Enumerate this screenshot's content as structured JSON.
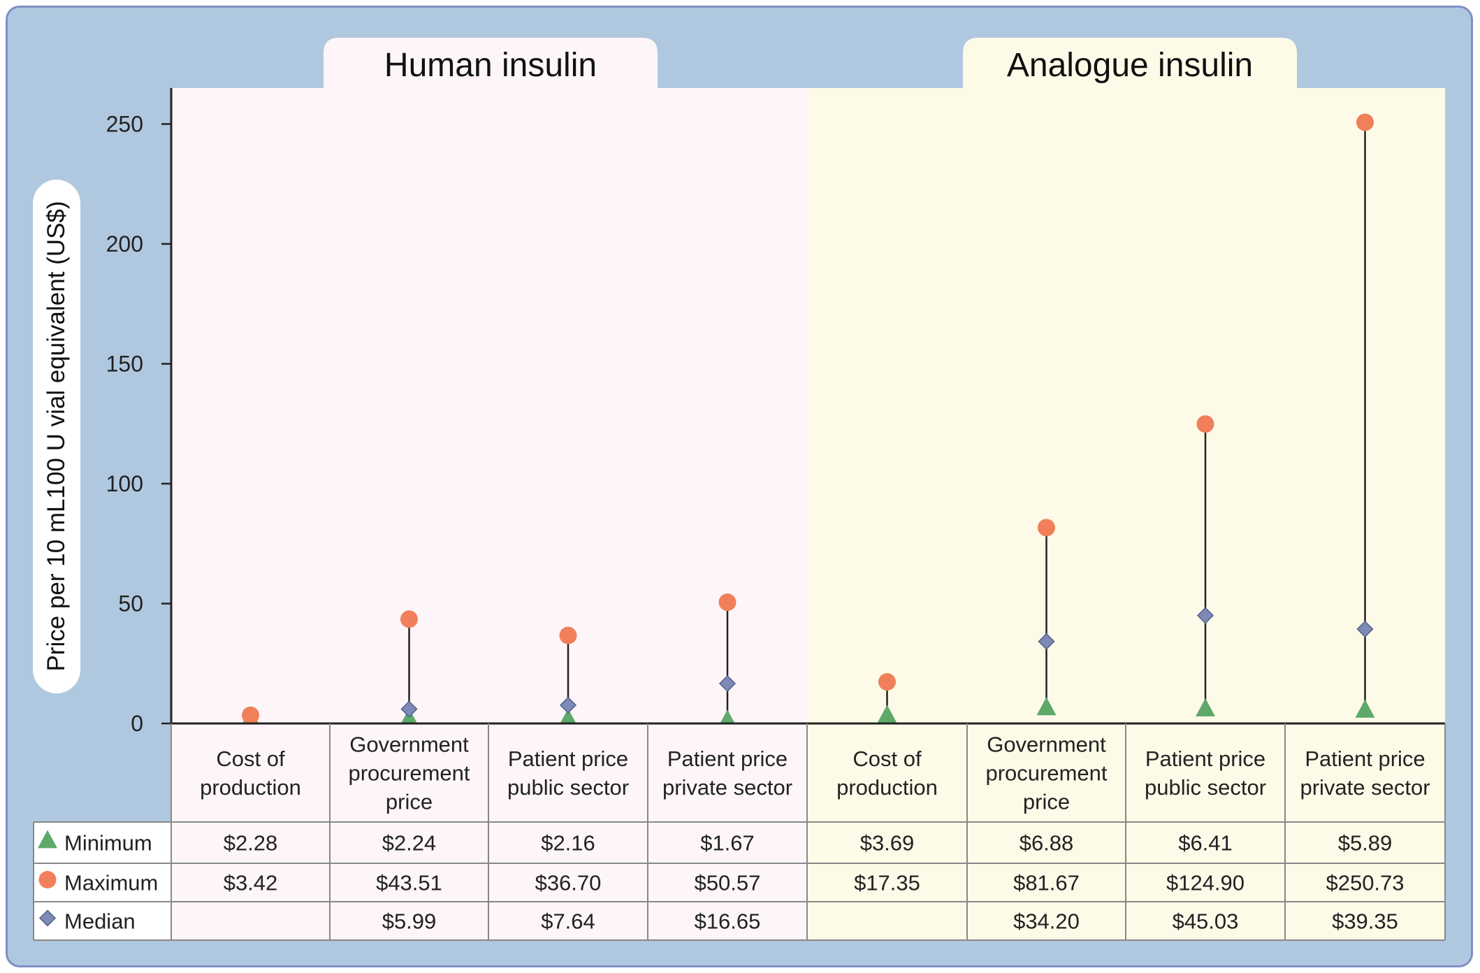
{
  "chart_data": {
    "type": "scatter",
    "groups": [
      {
        "title": "Human insulin",
        "categories": [
          0,
          1,
          2,
          3
        ]
      },
      {
        "title": "Analogue insulin",
        "categories": [
          4,
          5,
          6,
          7
        ]
      }
    ],
    "categories": [
      "Cost of production",
      "Government procurement price",
      "Patient price public sector",
      "Patient price private sector",
      "Cost of production",
      "Government procurement price",
      "Patient price public sector",
      "Patient price private sector"
    ],
    "category_lines": [
      [
        "Cost of",
        "production"
      ],
      [
        "Government",
        "procurement",
        "price"
      ],
      [
        "Patient price",
        "public sector"
      ],
      [
        "Patient price",
        "private sector"
      ],
      [
        "Cost of",
        "production"
      ],
      [
        "Government",
        "procurement",
        "price"
      ],
      [
        "Patient price",
        "public sector"
      ],
      [
        "Patient price",
        "private sector"
      ]
    ],
    "series": [
      {
        "name": "Minimum",
        "marker": "triangle",
        "color": "#5ea86a",
        "values": [
          2.28,
          2.24,
          2.16,
          1.67,
          3.69,
          6.88,
          6.41,
          5.89
        ],
        "labels": [
          "$2.28",
          "$2.24",
          "$2.16",
          "$1.67",
          "$3.69",
          "$6.88",
          "$6.41",
          "$5.89"
        ]
      },
      {
        "name": "Maximum",
        "marker": "circle",
        "color": "#f07f5a",
        "values": [
          3.42,
          43.51,
          36.7,
          50.57,
          17.35,
          81.67,
          124.9,
          250.73
        ],
        "labels": [
          "$3.42",
          "$43.51",
          "$36.70",
          "$50.57",
          "$17.35",
          "$81.67",
          "$124.90",
          "$250.73"
        ]
      },
      {
        "name": "Median",
        "marker": "diamond",
        "color": "#7d8ab5",
        "values": [
          null,
          5.99,
          7.64,
          16.65,
          null,
          34.2,
          45.03,
          39.35
        ],
        "labels": [
          "",
          "$5.99",
          "$7.64",
          "$16.65",
          "",
          "$34.20",
          "$45.03",
          "$39.35"
        ]
      }
    ],
    "ylabel": "Price per 10 mL100 U vial equivalent (US$)",
    "ylim": [
      0,
      265
    ],
    "yticks": [
      0,
      50,
      100,
      150,
      200,
      250
    ],
    "grid": false,
    "legend_placement": "bottom-left table",
    "colors": {
      "frame_bg": "#b0c8df",
      "frame_border": "#7f8fc4",
      "human_panel": "#fdf5f8",
      "analogue_panel": "#fdfbe8",
      "whisker": "#222222"
    }
  }
}
